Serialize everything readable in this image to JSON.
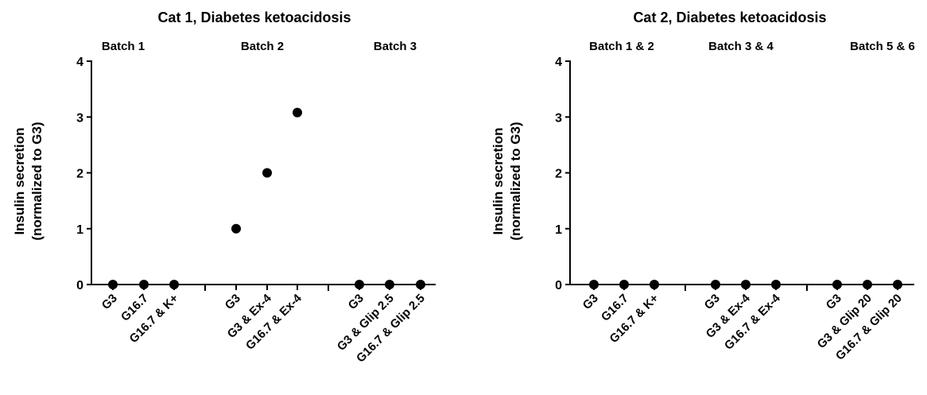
{
  "chart_data": [
    {
      "type": "scatter",
      "title": "Cat 1, Diabetes ketoacidosis",
      "ylabel_line1": "Insulin secretion",
      "ylabel_line2": "(normalized to G3)",
      "ylim": [
        0,
        4
      ],
      "yticks": [
        "0",
        "1",
        "2",
        "3",
        "4"
      ],
      "groups": [
        {
          "label": "Batch 1",
          "categories": [
            "G3",
            "G16.7",
            "G16.7 & K+"
          ],
          "values": [
            0,
            0,
            0
          ]
        },
        {
          "label": "Batch 2",
          "categories": [
            "G3",
            "G3 & Ex-4",
            "G16.7 & Ex-4"
          ],
          "values": [
            1.0,
            2.0,
            3.08
          ]
        },
        {
          "label": "Batch 3",
          "categories": [
            "G3",
            "G3 & Glip 2.5",
            "G16.7 & Glip 2.5"
          ],
          "values": [
            0,
            0,
            0
          ]
        }
      ],
      "marker_color": "#000000"
    },
    {
      "type": "scatter",
      "title": "Cat 2, Diabetes ketoacidosis",
      "ylabel_line1": "Insulin secretion",
      "ylabel_line2": "(normalized to G3)",
      "ylim": [
        0,
        4
      ],
      "yticks": [
        "0",
        "1",
        "2",
        "3",
        "4"
      ],
      "groups": [
        {
          "label": "Batch 1 & 2",
          "categories": [
            "G3",
            "G16.7",
            "G16.7 & K+"
          ],
          "values": [
            0,
            0,
            0
          ]
        },
        {
          "label": "Batch 3 & 4",
          "categories": [
            "G3",
            "G3 & Ex-4",
            "G16.7 & Ex-4"
          ],
          "values": [
            0,
            0,
            0
          ]
        },
        {
          "label": "Batch 5 & 6",
          "categories": [
            "G3",
            "G3 & Glip 20",
            "G16.7 & Glip 20"
          ],
          "values": [
            0,
            0,
            0
          ]
        }
      ],
      "marker_color": "#000000"
    }
  ]
}
